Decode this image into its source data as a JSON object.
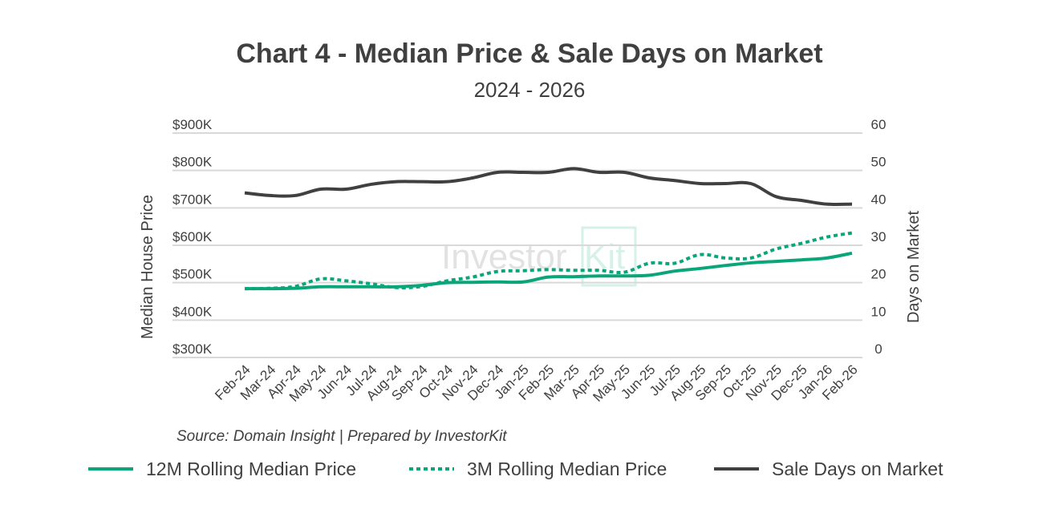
{
  "chart_data": {
    "type": "line",
    "title": "Chart 4 - Median Price & Sale Days on Market",
    "subtitle": "2024 - 2026",
    "ylabel": "Median House Price",
    "y2label": "Days on Market",
    "ylim": [
      300000,
      900000
    ],
    "y2lim": [
      0,
      60
    ],
    "yticks": [
      "$300K",
      "$400K",
      "$500K",
      "$600K",
      "$700K",
      "$800K",
      "$900K"
    ],
    "y2ticks": [
      "0",
      "10",
      "20",
      "30",
      "40",
      "50",
      "60"
    ],
    "categories": [
      "Feb-24",
      "Mar-24",
      "Apr-24",
      "May-24",
      "Jun-24",
      "Jul-24",
      "Aug-24",
      "Sep-24",
      "Oct-24",
      "Nov-24",
      "Dec-24",
      "Jan-25",
      "Feb-25",
      "Mar-25",
      "Apr-25",
      "May-25",
      "Jun-25",
      "Jul-25",
      "Aug-25",
      "Sep-25",
      "Oct-25",
      "Nov-25",
      "Dec-25",
      "Jan-26",
      "Feb-26"
    ],
    "series": [
      {
        "name": "12M Rolling Median Price",
        "axis": "left",
        "style": "solid",
        "color": "#0aa67a",
        "values": [
          484000,
          484000,
          485000,
          489000,
          489000,
          489000,
          489000,
          493000,
          500000,
          501000,
          502000,
          502000,
          515000,
          516000,
          518000,
          518000,
          520000,
          531000,
          538000,
          546000,
          553000,
          557000,
          561000,
          566000,
          579000
        ]
      },
      {
        "name": "3M Rolling Median Price",
        "axis": "left",
        "style": "dotted",
        "color": "#0aa67a",
        "values": [
          484000,
          485000,
          490000,
          510000,
          505000,
          497000,
          487000,
          490000,
          505000,
          515000,
          530000,
          532000,
          535000,
          533000,
          533000,
          528000,
          552000,
          552000,
          575000,
          566000,
          566000,
          590000,
          605000,
          622000,
          633000
        ]
      },
      {
        "name": "Sale Days on Market",
        "axis": "right",
        "style": "solid",
        "color": "#404040",
        "values": [
          44,
          43.3,
          43.3,
          45,
          45,
          46.3,
          47,
          47,
          47,
          48,
          49.5,
          49.5,
          49.5,
          50.5,
          49.5,
          49.5,
          48,
          47.3,
          46.5,
          46.5,
          46.5,
          43,
          42,
          41,
          41
        ]
      }
    ],
    "grid": true,
    "legend_position": "bottom",
    "source": "Source: Domain Insight | Prepared by InvestorKit",
    "watermark": "InvestorKit"
  }
}
